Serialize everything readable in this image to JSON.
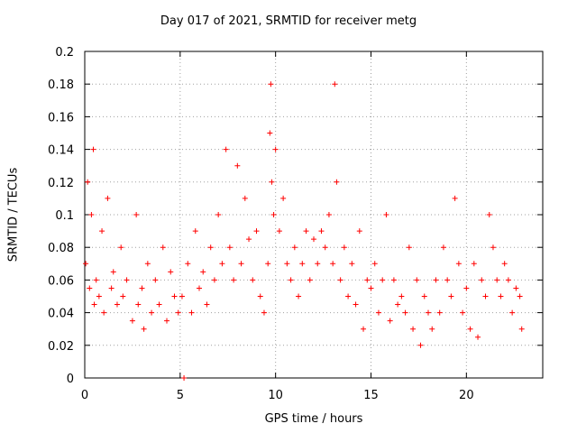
{
  "chart_data": {
    "type": "scatter",
    "title": "Day 017 of 2021, SRMTID for receiver metg",
    "xlabel": "GPS time / hours",
    "ylabel": "SRMTID / TECUs",
    "xlim": [
      0,
      24.0
    ],
    "ylim": [
      0,
      0.2
    ],
    "xticks": [
      0,
      5,
      10,
      15,
      20
    ],
    "xtick_labels": [
      "0",
      "5",
      "10",
      "15",
      "20"
    ],
    "yticks": [
      0,
      0.02,
      0.04,
      0.06,
      0.08,
      0.1,
      0.12,
      0.14,
      0.16,
      0.18,
      0.2
    ],
    "ytick_labels": [
      "0",
      "0.02",
      "0.04",
      "0.06",
      "0.08",
      "0.1",
      "0.12",
      "0.14",
      "0.16",
      "0.18",
      "0.2"
    ],
    "grid": true,
    "marker": "+",
    "color": "#ff0000",
    "series": [
      {
        "name": "SRMTID",
        "x": [
          0.05,
          0.15,
          0.25,
          0.35,
          0.45,
          0.5,
          0.6,
          0.75,
          0.9,
          1.0,
          1.2,
          1.4,
          1.5,
          1.7,
          1.9,
          2.0,
          2.2,
          2.5,
          2.7,
          2.8,
          3.0,
          3.1,
          3.3,
          3.5,
          3.7,
          3.9,
          4.1,
          4.3,
          4.5,
          4.7,
          4.9,
          5.1,
          5.2,
          5.4,
          5.6,
          5.8,
          6.0,
          6.2,
          6.4,
          6.6,
          6.8,
          7.0,
          7.2,
          7.4,
          7.6,
          7.8,
          8.0,
          8.2,
          8.4,
          8.6,
          8.8,
          9.0,
          9.2,
          9.4,
          9.6,
          9.7,
          9.75,
          9.8,
          9.9,
          10.0,
          10.2,
          10.4,
          10.6,
          10.8,
          11.0,
          11.2,
          11.4,
          11.6,
          11.8,
          12.0,
          12.2,
          12.4,
          12.6,
          12.8,
          13.0,
          13.1,
          13.2,
          13.4,
          13.6,
          13.8,
          14.0,
          14.2,
          14.4,
          14.6,
          14.8,
          15.0,
          15.2,
          15.4,
          15.6,
          15.8,
          16.0,
          16.2,
          16.4,
          16.6,
          16.8,
          17.0,
          17.2,
          17.4,
          17.6,
          17.8,
          18.0,
          18.2,
          18.4,
          18.6,
          18.8,
          19.0,
          19.2,
          19.4,
          19.6,
          19.8,
          20.0,
          20.2,
          20.4,
          20.6,
          20.8,
          21.0,
          21.2,
          21.4,
          21.6,
          21.8,
          22.0,
          22.2,
          22.4,
          22.6,
          22.8,
          22.9
        ],
        "y": [
          0.07,
          0.12,
          0.055,
          0.1,
          0.14,
          0.045,
          0.06,
          0.05,
          0.09,
          0.04,
          0.11,
          0.055,
          0.065,
          0.045,
          0.08,
          0.05,
          0.06,
          0.035,
          0.1,
          0.045,
          0.055,
          0.03,
          0.07,
          0.04,
          0.06,
          0.045,
          0.08,
          0.035,
          0.065,
          0.05,
          0.04,
          0.05,
          0.0,
          0.07,
          0.04,
          0.09,
          0.055,
          0.065,
          0.045,
          0.08,
          0.06,
          0.1,
          0.07,
          0.14,
          0.08,
          0.06,
          0.13,
          0.07,
          0.11,
          0.085,
          0.06,
          0.09,
          0.05,
          0.04,
          0.07,
          0.15,
          0.18,
          0.12,
          0.1,
          0.14,
          0.09,
          0.11,
          0.07,
          0.06,
          0.08,
          0.05,
          0.07,
          0.09,
          0.06,
          0.085,
          0.07,
          0.09,
          0.08,
          0.1,
          0.07,
          0.18,
          0.12,
          0.06,
          0.08,
          0.05,
          0.07,
          0.045,
          0.09,
          0.03,
          0.06,
          0.055,
          0.07,
          0.04,
          0.06,
          0.1,
          0.035,
          0.06,
          0.045,
          0.05,
          0.04,
          0.08,
          0.03,
          0.06,
          0.02,
          0.05,
          0.04,
          0.03,
          0.06,
          0.04,
          0.08,
          0.06,
          0.05,
          0.11,
          0.07,
          0.04,
          0.055,
          0.03,
          0.07,
          0.025,
          0.06,
          0.05,
          0.1,
          0.08,
          0.06,
          0.05,
          0.07,
          0.06,
          0.04,
          0.055,
          0.05,
          0.03
        ]
      }
    ]
  }
}
